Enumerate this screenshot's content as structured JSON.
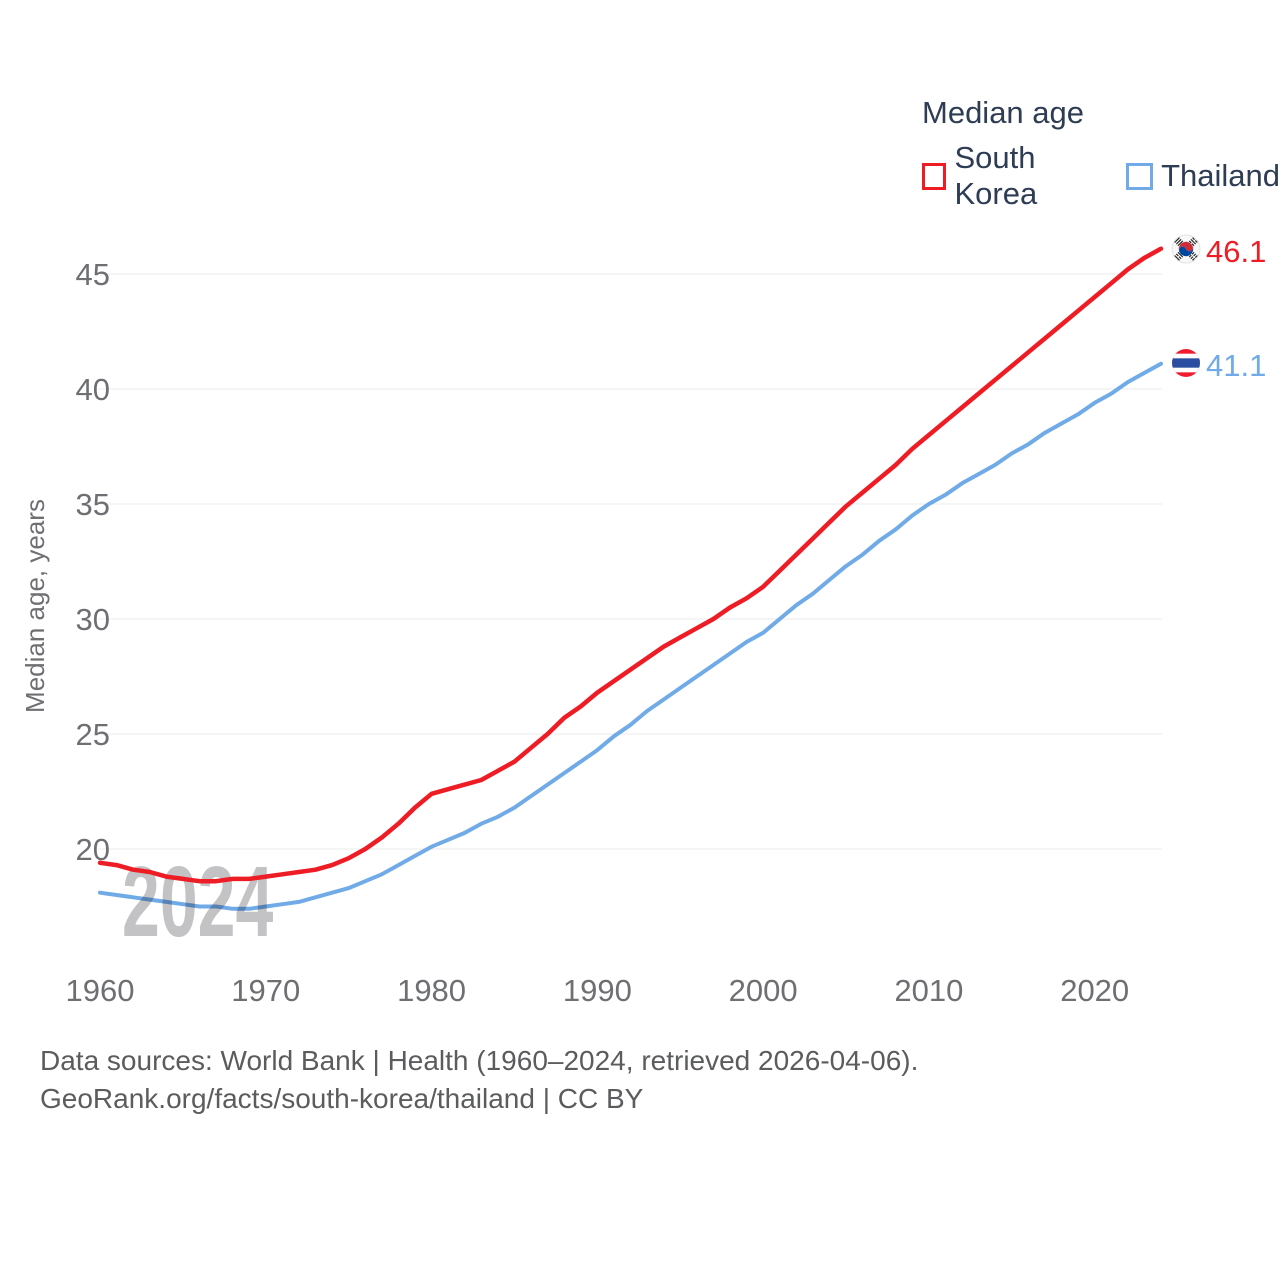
{
  "chart_data": {
    "type": "line",
    "title": "Median age",
    "ylabel": "Median age, years",
    "watermark": "2024",
    "grid": "horizontal",
    "legend_position": "top-right",
    "xlim": [
      1960,
      2024
    ],
    "ylim": [
      16.8,
      47.3
    ],
    "xticks": [
      1960,
      1970,
      1980,
      1990,
      2000,
      2010,
      2020
    ],
    "yticks": [
      20,
      25,
      30,
      35,
      40,
      45
    ],
    "x": [
      1960,
      1961,
      1962,
      1963,
      1964,
      1965,
      1966,
      1967,
      1968,
      1969,
      1970,
      1971,
      1972,
      1973,
      1974,
      1975,
      1976,
      1977,
      1978,
      1979,
      1980,
      1981,
      1982,
      1983,
      1984,
      1985,
      1986,
      1987,
      1988,
      1989,
      1990,
      1991,
      1992,
      1993,
      1994,
      1995,
      1996,
      1997,
      1998,
      1999,
      2000,
      2001,
      2002,
      2003,
      2004,
      2005,
      2006,
      2007,
      2008,
      2009,
      2010,
      2011,
      2012,
      2013,
      2014,
      2015,
      2016,
      2017,
      2018,
      2019,
      2020,
      2021,
      2022,
      2023,
      2024
    ],
    "series": [
      {
        "name": "South Korea",
        "color": "#ee1c25",
        "end_label": "46.1",
        "flag_icon": "south-korea-flag-icon",
        "values": [
          19.4,
          19.3,
          19.1,
          19.0,
          18.8,
          18.7,
          18.6,
          18.6,
          18.7,
          18.7,
          18.8,
          18.9,
          19.0,
          19.1,
          19.3,
          19.6,
          20.0,
          20.5,
          21.1,
          21.8,
          22.4,
          22.6,
          22.8,
          23.0,
          23.4,
          23.8,
          24.4,
          25.0,
          25.7,
          26.2,
          26.8,
          27.3,
          27.8,
          28.3,
          28.8,
          29.2,
          29.6,
          30.0,
          30.5,
          30.9,
          31.4,
          32.1,
          32.8,
          33.5,
          34.2,
          34.9,
          35.5,
          36.1,
          36.7,
          37.4,
          38.0,
          38.6,
          39.2,
          39.8,
          40.4,
          41.0,
          41.6,
          42.2,
          42.8,
          43.4,
          44.0,
          44.6,
          45.2,
          45.7,
          46.1
        ]
      },
      {
        "name": "Thailand",
        "color": "#70abe8",
        "end_label": "41.1",
        "flag_icon": "thailand-flag-icon",
        "values": [
          18.1,
          18.0,
          17.9,
          17.8,
          17.7,
          17.6,
          17.5,
          17.5,
          17.4,
          17.4,
          17.5,
          17.6,
          17.7,
          17.9,
          18.1,
          18.3,
          18.6,
          18.9,
          19.3,
          19.7,
          20.1,
          20.4,
          20.7,
          21.1,
          21.4,
          21.8,
          22.3,
          22.8,
          23.3,
          23.8,
          24.3,
          24.9,
          25.4,
          26.0,
          26.5,
          27.0,
          27.5,
          28.0,
          28.5,
          29.0,
          29.4,
          30.0,
          30.6,
          31.1,
          31.7,
          32.3,
          32.8,
          33.4,
          33.9,
          34.5,
          35.0,
          35.4,
          35.9,
          36.3,
          36.7,
          37.2,
          37.6,
          38.1,
          38.5,
          38.9,
          39.4,
          39.8,
          40.3,
          40.7,
          41.1
        ]
      }
    ],
    "colors": {
      "axis_text": "#6d6f72",
      "grid_line": "#ebebeb",
      "legend_text": "#2e3c54",
      "footer_text": "#5b5c5e",
      "watermark": "#c3c3c5"
    }
  },
  "footer": {
    "line1": "Data sources: World Bank | Health (1960–2024, retrieved 2026-04-06).",
    "line2": "GeoRank.org/facts/south-korea/thailand | CC BY"
  }
}
